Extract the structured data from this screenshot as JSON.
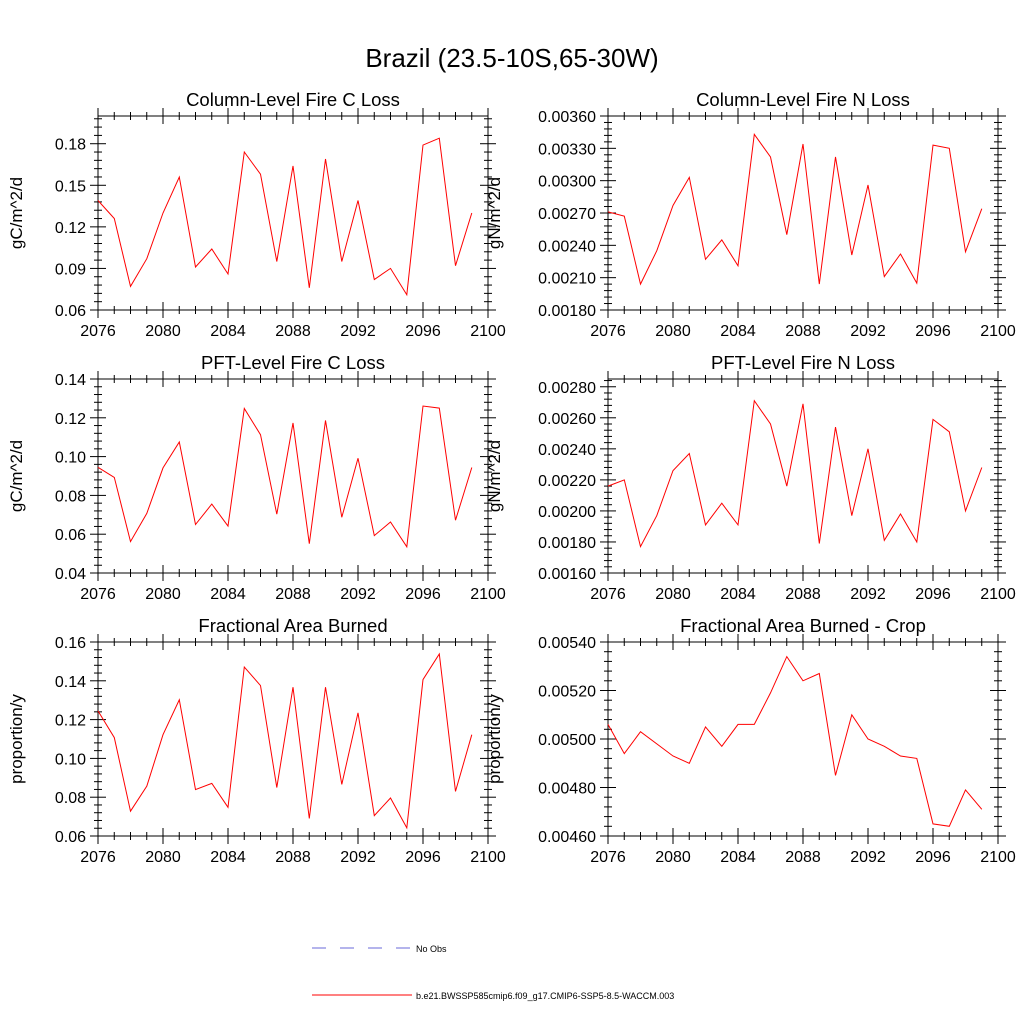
{
  "figure": {
    "title": "Brazil (23.5-10S,65-30W)",
    "line_color": "#ff0000",
    "obs_color": "#6a6ad8"
  },
  "legend": [
    {
      "label": "No Obs",
      "style": "dashed",
      "color": "#6a6ad8"
    },
    {
      "label": "b.e21.BWSSP585cmip6.f09_g17.CMIP6-SSP5-8.5-WACCM.003",
      "style": "solid",
      "color": "#ff0000"
    }
  ],
  "chart_data": [
    {
      "type": "line",
      "title": "Column-Level Fire C Loss",
      "ylabel": "gC/m^2/d",
      "xlabel": "",
      "xlim": [
        2076,
        2100
      ],
      "xticks": [
        2076,
        2080,
        2084,
        2088,
        2092,
        2096,
        2100
      ],
      "ylim": [
        0.06,
        0.2
      ],
      "yticks": [
        0.06,
        0.09,
        0.12,
        0.15,
        0.18
      ],
      "ytick_labels": [
        "0.06",
        "0.09",
        "0.12",
        "0.15",
        "0.18"
      ],
      "x": [
        2076,
        2077,
        2078,
        2079,
        2080,
        2081,
        2082,
        2083,
        2084,
        2085,
        2086,
        2087,
        2088,
        2089,
        2090,
        2091,
        2092,
        2093,
        2094,
        2095,
        2096,
        2097,
        2098,
        2099
      ],
      "series": [
        {
          "name": "b.e21.BWSSP585cmip6.f09_g17.CMIP6-SSP5-8.5-WACCM.003",
          "values": [
            0.139,
            0.126,
            0.077,
            0.097,
            0.13,
            0.156,
            0.091,
            0.104,
            0.086,
            0.174,
            0.158,
            0.095,
            0.164,
            0.076,
            0.169,
            0.095,
            0.139,
            0.082,
            0.09,
            0.071,
            0.179,
            0.184,
            0.092,
            0.13
          ]
        }
      ]
    },
    {
      "type": "line",
      "title": "Column-Level Fire N Loss",
      "ylabel": "gN/m^2/d",
      "xlabel": "",
      "xlim": [
        2076,
        2100
      ],
      "xticks": [
        2076,
        2080,
        2084,
        2088,
        2092,
        2096,
        2100
      ],
      "ylim": [
        0.0018,
        0.0036
      ],
      "yticks": [
        0.0018,
        0.0021,
        0.0024,
        0.0027,
        0.003,
        0.0033,
        0.0036
      ],
      "ytick_labels": [
        "0.00180",
        "0.00210",
        "0.00240",
        "0.00270",
        "0.00300",
        "0.00330",
        "0.00360"
      ],
      "x": [
        2076,
        2077,
        2078,
        2079,
        2080,
        2081,
        2082,
        2083,
        2084,
        2085,
        2086,
        2087,
        2088,
        2089,
        2090,
        2091,
        2092,
        2093,
        2094,
        2095,
        2096,
        2097,
        2098,
        2099
      ],
      "series": [
        {
          "name": "b.e21.BWSSP585cmip6.f09_g17.CMIP6-SSP5-8.5-WACCM.003",
          "values": [
            0.00271,
            0.00267,
            0.00204,
            0.00235,
            0.00277,
            0.00303,
            0.00227,
            0.00245,
            0.00221,
            0.00343,
            0.00322,
            0.0025,
            0.00334,
            0.00204,
            0.00322,
            0.00231,
            0.00296,
            0.00211,
            0.00232,
            0.00205,
            0.00333,
            0.0033,
            0.00234,
            0.00274
          ]
        }
      ]
    },
    {
      "type": "line",
      "title": "PFT-Level Fire C Loss",
      "ylabel": "gC/m^2/d",
      "xlabel": "",
      "xlim": [
        2076,
        2100
      ],
      "xticks": [
        2076,
        2080,
        2084,
        2088,
        2092,
        2096,
        2100
      ],
      "ylim": [
        0.04,
        0.14
      ],
      "yticks": [
        0.04,
        0.06,
        0.08,
        0.1,
        0.12,
        0.14
      ],
      "ytick_labels": [
        "0.04",
        "0.06",
        "0.08",
        "0.10",
        "0.12",
        "0.14"
      ],
      "x": [
        2076,
        2077,
        2078,
        2079,
        2080,
        2081,
        2082,
        2083,
        2084,
        2085,
        2086,
        2087,
        2088,
        2089,
        2090,
        2091,
        2092,
        2093,
        2094,
        2095,
        2096,
        2097,
        2098,
        2099
      ],
      "series": [
        {
          "name": "b.e21.BWSSP585cmip6.f09_g17.CMIP6-SSP5-8.5-WACCM.003",
          "values": [
            0.0945,
            0.0893,
            0.0562,
            0.0707,
            0.0942,
            0.1075,
            0.065,
            0.0755,
            0.0642,
            0.1248,
            0.1113,
            0.0703,
            0.1173,
            0.0551,
            0.1186,
            0.0687,
            0.0992,
            0.0593,
            0.0663,
            0.0535,
            0.1261,
            0.125,
            0.0672,
            0.0944
          ]
        }
      ]
    },
    {
      "type": "line",
      "title": "PFT-Level Fire N Loss",
      "ylabel": "gN/m^2/d",
      "xlabel": "",
      "xlim": [
        2076,
        2100
      ],
      "xticks": [
        2076,
        2080,
        2084,
        2088,
        2092,
        2096,
        2100
      ],
      "ylim": [
        0.0016,
        0.00285
      ],
      "yticks": [
        0.0016,
        0.0018,
        0.002,
        0.0022,
        0.0024,
        0.0026,
        0.0028
      ],
      "ytick_labels": [
        "0.00160",
        "0.00180",
        "0.00200",
        "0.00220",
        "0.00240",
        "0.00260",
        "0.00280"
      ],
      "x": [
        2076,
        2077,
        2078,
        2079,
        2080,
        2081,
        2082,
        2083,
        2084,
        2085,
        2086,
        2087,
        2088,
        2089,
        2090,
        2091,
        2092,
        2093,
        2094,
        2095,
        2096,
        2097,
        2098,
        2099
      ],
      "series": [
        {
          "name": "b.e21.BWSSP585cmip6.f09_g17.CMIP6-SSP5-8.5-WACCM.003",
          "values": [
            0.00216,
            0.0022,
            0.00177,
            0.00197,
            0.00226,
            0.00237,
            0.00191,
            0.00205,
            0.00191,
            0.00271,
            0.00256,
            0.00216,
            0.00269,
            0.00179,
            0.00254,
            0.00197,
            0.0024,
            0.00181,
            0.00198,
            0.0018,
            0.00259,
            0.00251,
            0.002,
            0.00228
          ]
        }
      ]
    },
    {
      "type": "line",
      "title": "Fractional Area Burned",
      "ylabel": "proportion/y",
      "xlabel": "",
      "xlim": [
        2076,
        2100
      ],
      "xticks": [
        2076,
        2080,
        2084,
        2088,
        2092,
        2096,
        2100
      ],
      "ylim": [
        0.06,
        0.16
      ],
      "yticks": [
        0.06,
        0.08,
        0.1,
        0.12,
        0.14,
        0.16
      ],
      "ytick_labels": [
        "0.06",
        "0.08",
        "0.10",
        "0.12",
        "0.14",
        "0.16"
      ],
      "x": [
        2076,
        2077,
        2078,
        2079,
        2080,
        2081,
        2082,
        2083,
        2084,
        2085,
        2086,
        2087,
        2088,
        2089,
        2090,
        2091,
        2092,
        2093,
        2094,
        2095,
        2096,
        2097,
        2098,
        2099
      ],
      "series": [
        {
          "name": "b.e21.BWSSP585cmip6.f09_g17.CMIP6-SSP5-8.5-WACCM.003",
          "values": [
            0.1245,
            0.1107,
            0.0728,
            0.0857,
            0.1122,
            0.1302,
            0.0839,
            0.0871,
            0.0748,
            0.1471,
            0.1375,
            0.085,
            0.1367,
            0.069,
            0.1367,
            0.0866,
            0.1235,
            0.0705,
            0.0796,
            0.0642,
            0.1406,
            0.1538,
            0.083,
            0.1122
          ]
        }
      ]
    },
    {
      "type": "line",
      "title": "Fractional Area Burned - Crop",
      "ylabel": "proportion/y",
      "xlabel": "",
      "xlim": [
        2076,
        2100
      ],
      "xticks": [
        2076,
        2080,
        2084,
        2088,
        2092,
        2096,
        2100
      ],
      "ylim": [
        0.0046,
        0.0054
      ],
      "yticks": [
        0.0046,
        0.0048,
        0.005,
        0.0052,
        0.0054
      ],
      "ytick_labels": [
        "0.00460",
        "0.00480",
        "0.00500",
        "0.00520",
        "0.00540"
      ],
      "x": [
        2076,
        2077,
        2078,
        2079,
        2080,
        2081,
        2082,
        2083,
        2084,
        2085,
        2086,
        2087,
        2088,
        2089,
        2090,
        2091,
        2092,
        2093,
        2094,
        2095,
        2096,
        2097,
        2098,
        2099
      ],
      "series": [
        {
          "name": "b.e21.BWSSP585cmip6.f09_g17.CMIP6-SSP5-8.5-WACCM.003",
          "values": [
            0.00506,
            0.00494,
            0.00503,
            0.00498,
            0.00493,
            0.0049,
            0.00505,
            0.00497,
            0.00506,
            0.00506,
            0.00519,
            0.00534,
            0.00524,
            0.00527,
            0.00485,
            0.0051,
            0.005,
            0.00497,
            0.00493,
            0.00492,
            0.00465,
            0.00464,
            0.00479,
            0.00471
          ]
        }
      ]
    }
  ]
}
